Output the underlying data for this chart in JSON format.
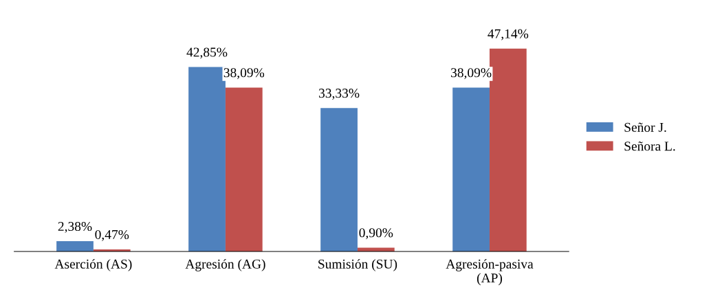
{
  "chart_data": {
    "type": "bar",
    "categories": [
      "Aserción (AS)",
      "Agresión (AG)",
      "Sumisión (SU)",
      "Agresión-pasiva\n(AP)"
    ],
    "series": [
      {
        "name": "Señor J.",
        "color": "#4f81bd",
        "values": [
          2.38,
          42.85,
          33.33,
          38.09
        ],
        "value_labels": [
          "2,38%",
          "42,85%",
          "33,33%",
          "38,09%"
        ]
      },
      {
        "name": "Señora L.",
        "color": "#c0504d",
        "values": [
          0.47,
          38.09,
          0.9,
          47.14
        ],
        "value_labels": [
          "0,47%",
          "38,09%",
          "0,90%",
          "47,14%"
        ]
      }
    ],
    "legend": "right",
    "grid": false
  }
}
